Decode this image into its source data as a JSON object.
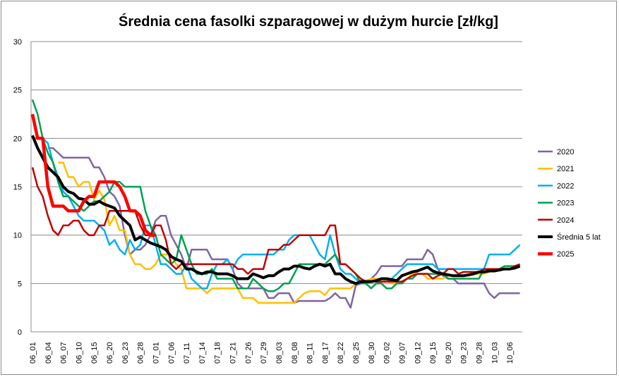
{
  "chart_data": {
    "type": "line",
    "title": "Średnia cena fasolki szparagowej w dużym hurcie [zł/kg]",
    "xlabel": "",
    "ylabel": "",
    "ylim": [
      0,
      30
    ],
    "yticks": [
      0,
      5,
      10,
      15,
      20,
      25,
      30
    ],
    "grid": true,
    "legend_position": "right",
    "x_tick_labels": [
      "06_01",
      "06_04",
      "06_07",
      "06_10",
      "06_15",
      "06_20",
      "06_23",
      "06_28",
      "07_01",
      "07_06",
      "07_11",
      "07_14",
      "07_18",
      "07_21",
      "07_26",
      "07_29",
      "08_03",
      "08_08",
      "08_11",
      "08_17",
      "08_22",
      "08_25",
      "08_30",
      "09_02",
      "09_07",
      "09_12",
      "09_15",
      "09_20",
      "09_23",
      "09_28",
      "10_03",
      "10_06"
    ],
    "x_tick_every": 3,
    "n_points": 96,
    "series": [
      {
        "name": "2020",
        "color": "#8064a2",
        "width": 2.5,
        "values": [
          null,
          null,
          null,
          19,
          19,
          18.5,
          18,
          18,
          18,
          18,
          18,
          18,
          17,
          17,
          16,
          14.5,
          14,
          13,
          10,
          8,
          8.5,
          8.5,
          9,
          10,
          11.5,
          12,
          12,
          10,
          9,
          8,
          6.5,
          8.5,
          8.5,
          8.5,
          8.5,
          7.5,
          7.5,
          7.5,
          7.5,
          6.5,
          5,
          4.5,
          4.5,
          4.5,
          4.5,
          4.5,
          3.5,
          3.5,
          4,
          4,
          4,
          3,
          3.2,
          3.2,
          3.2,
          3.2,
          3.2,
          3.2,
          3.5,
          4,
          3.5,
          3.5,
          2.5,
          4.8,
          5,
          5,
          5.5,
          6,
          6.8,
          6.8,
          6.8,
          6.8,
          6.8,
          7.5,
          7.5,
          7.5,
          7.5,
          8.5,
          8,
          6.5,
          5.8,
          5.5,
          5.5,
          5,
          5,
          5,
          5,
          5,
          5,
          4,
          3.5,
          4,
          4,
          4,
          4,
          4
        ]
      },
      {
        "name": "2021",
        "color": "#ffc000",
        "width": 2.5,
        "values": [
          null,
          null,
          null,
          null,
          null,
          17.5,
          17.5,
          16,
          16,
          15,
          15.5,
          15.5,
          13.7,
          14.6,
          13.7,
          11,
          12,
          10.5,
          10.5,
          8,
          7,
          7,
          6.5,
          6.5,
          7,
          8,
          8,
          8,
          7,
          6.5,
          4.5,
          4.5,
          4.5,
          4.5,
          4,
          4.5,
          4.5,
          4.5,
          4.5,
          4.5,
          4.5,
          3.5,
          3.5,
          3.5,
          3,
          3,
          3,
          3,
          3,
          3,
          3,
          3,
          3.5,
          4,
          4.2,
          4.2,
          4.2,
          3.8,
          4.5,
          4.5,
          4.5,
          4.5,
          4.5,
          5,
          5.3,
          5.3,
          5.5,
          5.5,
          5.5,
          5.3,
          5,
          5,
          5,
          5.5,
          6,
          6,
          6,
          5.5,
          5.5,
          5.5,
          5.5,
          5.8,
          5.8,
          5.8,
          5.8,
          5.8,
          6,
          6,
          6,
          6.2,
          6.5,
          6.5,
          6.5,
          6.5,
          6.7,
          7
        ]
      },
      {
        "name": "2022",
        "color": "#00b0f0",
        "width": 2.5,
        "values": [
          20,
          20,
          20,
          19.5,
          17.5,
          16,
          14.5,
          14,
          13,
          12,
          11.5,
          11.5,
          11.5,
          11,
          10.5,
          9,
          9.5,
          8.5,
          8,
          9.5,
          8.5,
          9,
          11,
          11,
          9,
          7,
          7,
          6.5,
          6,
          6,
          7,
          5.5,
          5,
          4.5,
          4.5,
          6,
          7,
          7,
          7.5,
          6.5,
          7.5,
          8,
          8,
          8,
          8,
          8,
          8,
          8,
          8.5,
          8.5,
          9.5,
          10,
          10,
          10,
          10,
          9,
          8,
          7.5,
          10,
          8,
          6.5,
          6,
          6,
          5.5,
          5,
          5,
          5.2,
          5.2,
          5.2,
          5.2,
          5.5,
          6,
          6.5,
          7,
          7,
          7,
          7,
          7,
          7,
          6.5,
          6.5,
          6.5,
          6.5,
          6.5,
          6.5,
          6.5,
          6.5,
          6.5,
          6.5,
          8,
          8,
          8,
          8,
          8,
          8.5,
          9
        ]
      },
      {
        "name": "2023",
        "color": "#00a050",
        "width": 2.5,
        "values": [
          24,
          22.5,
          20,
          18.5,
          17.5,
          15.5,
          14,
          14,
          13.5,
          13,
          12.5,
          13,
          13.5,
          13.5,
          14,
          14.5,
          15.5,
          15.5,
          15,
          15,
          15,
          15,
          12.5,
          11,
          10,
          8,
          7.5,
          7,
          7.5,
          10,
          8.5,
          7,
          6,
          6,
          6,
          6.5,
          5.5,
          5.5,
          5.5,
          5.5,
          4.5,
          4.5,
          4.5,
          5.5,
          5,
          4.5,
          4.2,
          4.2,
          4.5,
          5,
          5,
          6,
          7,
          7,
          7,
          7,
          7,
          7,
          7.5,
          8,
          7,
          7,
          6.5,
          6,
          5,
          5,
          4.5,
          5,
          5,
          4.5,
          4.5,
          5,
          5,
          5.5,
          5.5,
          6,
          6,
          6,
          6,
          6,
          6,
          5.5,
          5.5,
          5.5,
          5.5,
          5.5,
          5.5,
          5.5,
          6.5,
          6.5,
          6.5,
          6.5,
          6.8,
          6.8,
          6.8,
          6.8
        ]
      },
      {
        "name": "2024",
        "color": "#c00000",
        "width": 2.5,
        "values": [
          17,
          15,
          14,
          12,
          10.5,
          10,
          11,
          11,
          11.5,
          11.5,
          10.5,
          10,
          10,
          11,
          11,
          12.5,
          12.5,
          12.5,
          12.5,
          12.5,
          12.5,
          11,
          10,
          10,
          11,
          11,
          9.5,
          7,
          6.5,
          7,
          7,
          7,
          7,
          7,
          7,
          7,
          7,
          7,
          7,
          7,
          6.5,
          6.5,
          6,
          6.5,
          6.5,
          6.5,
          8.5,
          8.5,
          8.5,
          9,
          9,
          9.5,
          10,
          10,
          10,
          10,
          10,
          10,
          11,
          11,
          7,
          7,
          6.5,
          6,
          5.5,
          5.2,
          5.2,
          5.2,
          5.2,
          5.2,
          5.2,
          5.2,
          5.2,
          5.5,
          5.8,
          6,
          6,
          6,
          5.5,
          5.8,
          6,
          6.5,
          6.5,
          6,
          6.2,
          6.2,
          6.2,
          6.2,
          6.5,
          6.5,
          6.5,
          6.5,
          6.5,
          6.5,
          6.8,
          7
        ]
      },
      {
        "name": "Średnia 5 lat",
        "color": "#000000",
        "width": 4,
        "values": [
          20.3,
          19,
          18,
          17,
          16.5,
          16,
          15,
          14.5,
          14.3,
          13.8,
          13.7,
          13.2,
          13.2,
          13.5,
          13.2,
          13,
          12.8,
          12,
          11.5,
          11,
          9.5,
          9.8,
          9.5,
          9.2,
          9,
          8.8,
          8.5,
          7.8,
          7.5,
          7.3,
          6.5,
          6.5,
          6.2,
          6,
          6.2,
          6.2,
          6,
          6,
          6,
          5.8,
          5.5,
          5.5,
          5.5,
          6,
          5.8,
          5.6,
          5.8,
          5.8,
          6.2,
          6.5,
          6.5,
          6.8,
          6.8,
          6.6,
          6.5,
          6.8,
          7,
          6.8,
          7,
          6,
          6,
          5.5,
          5.2,
          5,
          5.2,
          5.2,
          5.2,
          5.3,
          5.5,
          5.5,
          5.4,
          5.3,
          5.8,
          6,
          6.2,
          6.3,
          6.5,
          6.7,
          6.3,
          6.1,
          6,
          5.9,
          5.8,
          5.8,
          5.8,
          5.9,
          6,
          6.2,
          6.2,
          6.3,
          6.3,
          6.4,
          6.5,
          6.5,
          6.6,
          6.8
        ]
      },
      {
        "name": "2025",
        "color": "#ff0000",
        "width": 4.5,
        "values": [
          22.5,
          20,
          20,
          15,
          13,
          13,
          13,
          12.5,
          12.5,
          12.5,
          13.5,
          14,
          14,
          15.5,
          15.5,
          15.5,
          15.5,
          15,
          14,
          12.5,
          12.5,
          12,
          10.5,
          10,
          10
        ]
      }
    ]
  }
}
